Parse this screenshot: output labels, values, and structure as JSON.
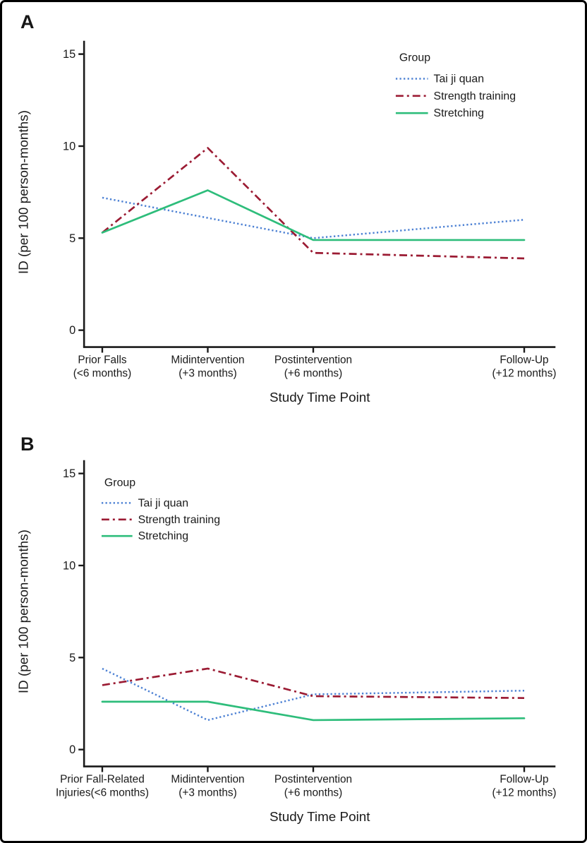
{
  "figure_title": "",
  "axis_color": "#1a1a1a",
  "chart_data": [
    {
      "type": "line",
      "panel": "A",
      "xlabel": "Study Time Point",
      "ylabel": "ID (per 100 person-months)",
      "ylim": [
        0,
        16
      ],
      "yticks": [
        0,
        5,
        10,
        15
      ],
      "grid": false,
      "x_months": [
        0,
        3,
        6,
        12
      ],
      "categories": [
        "Prior Falls\n(<6 months)",
        "Midintervention\n(+3 months)",
        "Postintervention\n(+6 months)",
        "Follow-Up\n(+12 months)"
      ],
      "legend_title": "Group",
      "legend_position": "top-right",
      "series": [
        {
          "name": "Tai ji quan",
          "color": "#4E82D4",
          "style": "dotted",
          "values": [
            7.2,
            6.1,
            5.0,
            6.0
          ]
        },
        {
          "name": "Strength training",
          "color": "#9B1B33",
          "style": "dashdot",
          "values": [
            5.3,
            9.9,
            4.2,
            3.9
          ]
        },
        {
          "name": "Stretching",
          "color": "#2EBD7B",
          "style": "solid",
          "values": [
            5.3,
            7.6,
            4.9,
            4.9
          ]
        }
      ]
    },
    {
      "type": "line",
      "panel": "B",
      "xlabel": "Study Time Point",
      "ylabel": "ID (per 100 person-months)",
      "ylim": [
        0,
        16
      ],
      "yticks": [
        0,
        5,
        10,
        15
      ],
      "grid": false,
      "x_months": [
        0,
        3,
        6,
        12
      ],
      "categories": [
        "Prior Fall-Related\nInjuries(<6 months)",
        "Midintervention\n(+3 months)",
        "Postintervention\n(+6 months)",
        "Follow-Up\n(+12 months)"
      ],
      "legend_title": "Group",
      "legend_position": "top-left",
      "series": [
        {
          "name": "Tai ji quan",
          "color": "#4E82D4",
          "style": "dotted",
          "values": [
            4.4,
            1.6,
            3.0,
            3.2
          ]
        },
        {
          "name": "Strength training",
          "color": "#9B1B33",
          "style": "dashdot",
          "values": [
            3.5,
            4.4,
            2.9,
            2.8
          ]
        },
        {
          "name": "Stretching",
          "color": "#2EBD7B",
          "style": "solid",
          "values": [
            2.6,
            2.6,
            1.6,
            1.7
          ]
        }
      ]
    }
  ]
}
